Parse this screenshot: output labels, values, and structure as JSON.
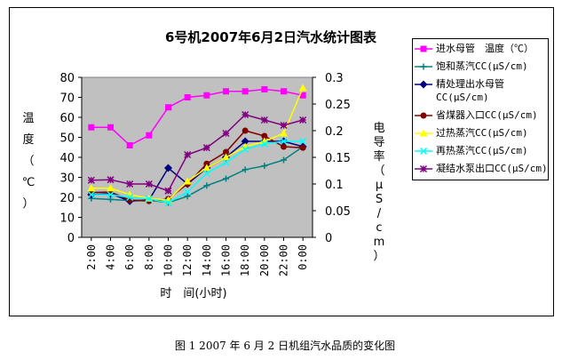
{
  "caption": "图 1   2007 年 6 月 2 日机组汽水品质的变化图",
  "chart_data": {
    "type": "line",
    "title": "6号机2007年6月2日汽水统计图表",
    "xlabel": "时　间(小时)",
    "ylabel_left": "温度（℃）",
    "ylabel_right": "电导率（μS/cm）",
    "categories": [
      "2:00",
      "4:00",
      "6:00",
      "8:00",
      "10:00",
      "12:00",
      "14:00",
      "16:00",
      "18:00",
      "20:00",
      "22:00",
      "0:00"
    ],
    "ylim_left": [
      0,
      80
    ],
    "yticks_left": [
      "0",
      "10",
      "20",
      "30",
      "40",
      "50",
      "60",
      "70",
      "80"
    ],
    "ylim_right": [
      0,
      0.3
    ],
    "yticks_right": [
      "0",
      "0.05",
      "0.1",
      "0.15",
      "0.2",
      "0.25",
      "0.3"
    ],
    "plot_background": "#c0c0c0",
    "legend_position": "right",
    "series": [
      {
        "name": "进水母管　温度（℃）",
        "axis": "left",
        "color": "#ff00ff",
        "marker": "square",
        "values": [
          55,
          55,
          46,
          51,
          65,
          70,
          71,
          73,
          73,
          74,
          73,
          71
        ]
      },
      {
        "name": "饱和蒸汽CC(μS/cm)",
        "axis": "right",
        "color": "#008080",
        "marker": "plus",
        "values": [
          0.073,
          0.071,
          0.069,
          0.07,
          0.065,
          0.077,
          0.097,
          0.11,
          0.127,
          0.134,
          0.145,
          0.17
        ]
      },
      {
        "name": "精处理出水母管CC(μS/cm)",
        "axis": "right",
        "color": "#000080",
        "marker": "diamond",
        "values": [
          0.08,
          0.082,
          0.068,
          0.07,
          0.13,
          0.1,
          0.13,
          0.15,
          0.18,
          0.18,
          0.18,
          0.17
        ]
      },
      {
        "name": "省煤器入口CC(μS/cm)",
        "axis": "right",
        "color": "#800000",
        "marker": "circle",
        "values": [
          0.084,
          0.085,
          0.07,
          0.068,
          0.072,
          0.1,
          0.138,
          0.16,
          0.2,
          0.19,
          0.17,
          0.168
        ]
      },
      {
        "name": "过热蒸汽CC(μS/cm)",
        "axis": "right",
        "color": "#ffff00",
        "marker": "triangle",
        "values": [
          0.092,
          0.092,
          0.08,
          0.073,
          0.07,
          0.105,
          0.13,
          0.15,
          0.17,
          0.18,
          0.195,
          0.28
        ]
      },
      {
        "name": "再热蒸汽CC(μS/cm)",
        "axis": "right",
        "color": "#00ffff",
        "marker": "x",
        "values": [
          0.08,
          0.08,
          0.075,
          0.072,
          0.065,
          0.085,
          0.12,
          0.14,
          0.165,
          0.175,
          0.18,
          0.18
        ]
      },
      {
        "name": "凝结水泵出口CC(μS/cm)",
        "axis": "right",
        "color": "#800080",
        "marker": "asterisk",
        "values": [
          0.107,
          0.108,
          0.1,
          0.1,
          0.087,
          0.155,
          0.168,
          0.195,
          0.23,
          0.22,
          0.21,
          0.22
        ]
      }
    ]
  }
}
